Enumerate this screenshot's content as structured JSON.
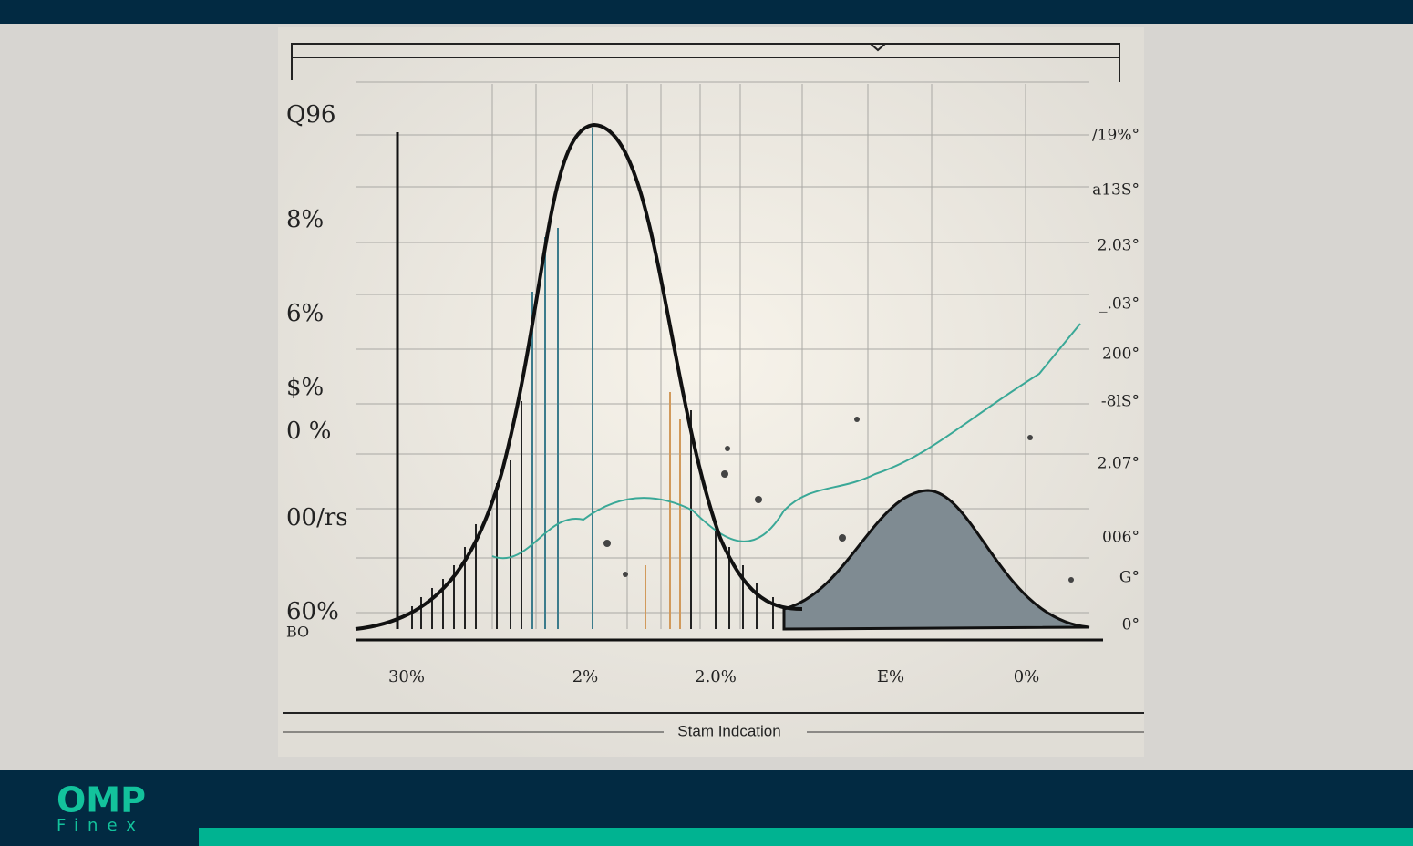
{
  "illustration": {
    "left_labels": [
      "Q96",
      "8%",
      "6%",
      "$%",
      "0 %",
      "00/rs",
      "60%",
      "BO"
    ],
    "right_labels": [
      "/19%°",
      "a13S°",
      "2.03°",
      "_.03°",
      "200°",
      "-8lS°",
      "2.07°",
      "006°",
      "G°",
      "0°"
    ],
    "bottom_labels": [
      "30%",
      "2%",
      "2.0%",
      "E%",
      "0%"
    ],
    "caption": "Stam Indcation"
  },
  "brand": {
    "name": "OMP",
    "tagline": "Finex"
  }
}
